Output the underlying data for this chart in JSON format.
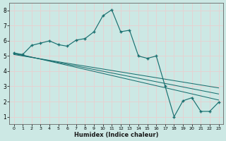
{
  "xlabel": "Humidex (Indice chaleur)",
  "xlim": [
    -0.5,
    23.5
  ],
  "ylim": [
    0.5,
    8.5
  ],
  "xticks": [
    0,
    1,
    2,
    3,
    4,
    5,
    6,
    7,
    8,
    9,
    10,
    11,
    12,
    13,
    14,
    15,
    16,
    17,
    18,
    19,
    20,
    21,
    22,
    23
  ],
  "yticks": [
    1,
    2,
    3,
    4,
    5,
    6,
    7,
    8
  ],
  "bg_color": "#cce8e4",
  "grid_color": "#e8d0d0",
  "line_color": "#1a7070",
  "series1_x": [
    0,
    1,
    2,
    3,
    4,
    5,
    6,
    7,
    8,
    9,
    10,
    11,
    12,
    13,
    14,
    15,
    16,
    17,
    18,
    19,
    20,
    21,
    22,
    23
  ],
  "series1_y": [
    5.2,
    5.1,
    5.7,
    5.85,
    6.0,
    5.75,
    5.65,
    6.05,
    6.15,
    6.6,
    7.65,
    8.05,
    6.6,
    6.7,
    5.0,
    4.85,
    5.0,
    3.0,
    1.0,
    2.05,
    2.25,
    1.35,
    1.35,
    1.95
  ],
  "linear_lines": [
    [
      [
        0,
        23
      ],
      [
        5.2,
        2.1
      ]
    ],
    [
      [
        0,
        23
      ],
      [
        5.15,
        2.5
      ]
    ],
    [
      [
        0,
        23
      ],
      [
        5.1,
        2.9
      ]
    ]
  ]
}
